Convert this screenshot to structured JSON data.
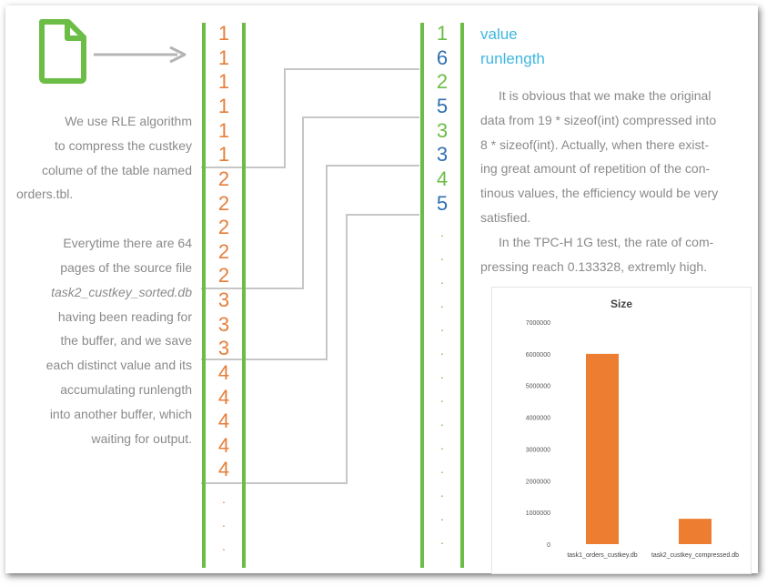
{
  "left_column": [
    {
      "text": "We use RLE algorithm",
      "italic": false
    },
    {
      "text": "to compress the custkey",
      "italic": false
    },
    {
      "text": "colume of the table named",
      "italic": false
    },
    {
      "text": "orders.tbl.",
      "italic": false
    },
    {
      "text": "Everytime there are 64",
      "italic": false
    },
    {
      "text": "pages of the source file",
      "italic": false
    },
    {
      "text": "task2_custkey_sorted.db",
      "italic": true
    },
    {
      "text": "having been reading for",
      "italic": false
    },
    {
      "text": "the buffer, and we save",
      "italic": false
    },
    {
      "text": "each distinct value and its",
      "italic": false
    },
    {
      "text": "accumulating runlength",
      "italic": false
    },
    {
      "text": "into another buffer, which",
      "italic": false
    },
    {
      "text": "waiting for output.",
      "italic": false
    }
  ],
  "source_values": [
    "1",
    "1",
    "1",
    "1",
    "1",
    "1",
    "2",
    "2",
    "2",
    "2",
    "2",
    "3",
    "3",
    "3",
    "4",
    "4",
    "4",
    "4",
    "4"
  ],
  "encoded_values": [
    {
      "text": "1",
      "kind": "value"
    },
    {
      "text": "6",
      "kind": "runlength"
    },
    {
      "text": "2",
      "kind": "value"
    },
    {
      "text": "5",
      "kind": "runlength"
    },
    {
      "text": "3",
      "kind": "value"
    },
    {
      "text": "3",
      "kind": "runlength"
    },
    {
      "text": "4",
      "kind": "value"
    },
    {
      "text": "5",
      "kind": "runlength"
    }
  ],
  "continuation_dot": ".",
  "legend": {
    "value": "value",
    "runlength": "runlength"
  },
  "right_column": [
    "It is obvious that we make the original",
    "data from 19 * sizeof(int) compressed into",
    "8 * sizeof(int). Actually, when there exist-",
    "ing great amount of repetition of the con-",
    "tinous values, the efficiency would be very",
    "satisfied.",
    "In the TPC-H 1G test, the rate of com-",
    "pressing reach 0.133328, extremly high."
  ],
  "colors": {
    "orange": "#e67e3a",
    "green": "#6bbd45",
    "blue": "#2f6fb0",
    "cyan": "#3fb6e0",
    "gray_text": "#8a8a8a",
    "connector": "#c6c6c6",
    "arrow": "#b4b4b4"
  },
  "icons": {
    "file": "document-icon",
    "arrow": "arrow-right-icon"
  },
  "chart_data": {
    "type": "bar",
    "title": "Size",
    "categories": [
      "task1_orders_custkey.db",
      "task2_custkey_compressed.db"
    ],
    "values": [
      6000000,
      800000
    ],
    "ylim": [
      0,
      7000000
    ],
    "yticks": [
      "0",
      "1000000",
      "2000000",
      "3000000",
      "4000000",
      "5000000",
      "6000000",
      "7000000"
    ],
    "tick_values": [
      0,
      1000000,
      2000000,
      3000000,
      4000000,
      5000000,
      6000000,
      7000000
    ],
    "xlabel": "",
    "ylabel": "",
    "bar_color": "#ed7d31",
    "grid": false
  }
}
